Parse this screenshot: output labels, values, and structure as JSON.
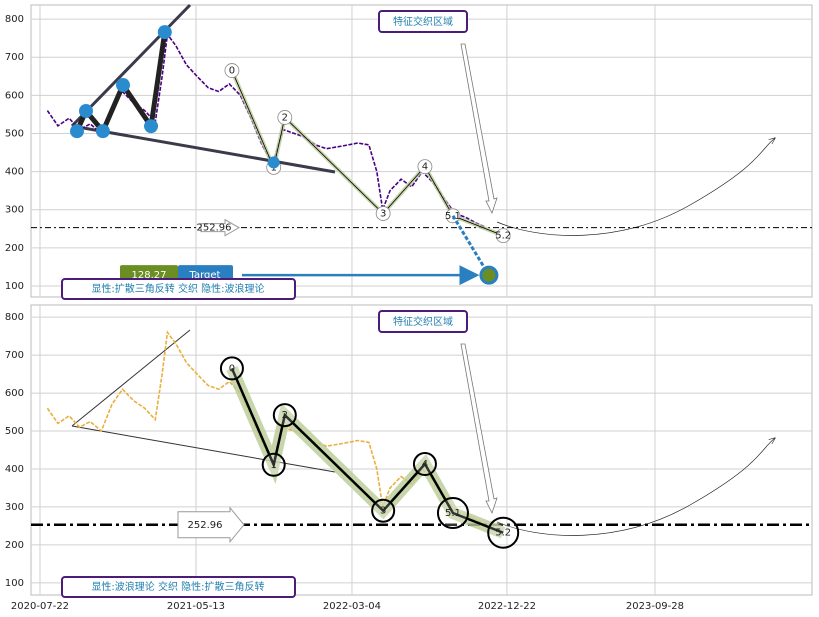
{
  "chart_data": [
    {
      "type": "line",
      "xlim": [
        "2020-07-05",
        "2024-07-21"
      ],
      "xticks": [
        "2020-07-22",
        "2021-05-13",
        "2022-03-04",
        "2022-12-22",
        "2023-09-28"
      ],
      "ylim": [
        71,
        837
      ],
      "yticks": [
        100,
        200,
        300,
        400,
        500,
        600,
        700,
        800
      ],
      "grid": true,
      "x": [
        "2020-08-05",
        "2020-08-25",
        "2020-09-15",
        "2020-10-05",
        "2020-10-25",
        "2020-11-15",
        "2020-12-05",
        "2020-12-25",
        "2021-01-15",
        "2021-02-05",
        "2021-02-25",
        "2021-03-10",
        "2021-03-20",
        "2021-04-05",
        "2021-04-25",
        "2021-05-15",
        "2021-06-05",
        "2021-06-25",
        "2021-07-15",
        "2021-08-05",
        "2021-08-25",
        "2021-09-15",
        "2021-10-05",
        "2021-10-25",
        "2021-11-15",
        "2021-12-05",
        "2021-12-25",
        "2022-01-15",
        "2022-02-05",
        "2022-02-25",
        "2022-03-15",
        "2022-04-05",
        "2022-04-20",
        "2022-05-01",
        "2022-05-15",
        "2022-06-05",
        "2022-06-25",
        "2022-07-15",
        "2022-08-05",
        "2022-08-25",
        "2022-09-15",
        "2022-10-05",
        "2022-10-25",
        "2022-11-10"
      ],
      "series": [
        {
          "color": "#4b0082",
          "values": [
            560,
            520,
            540,
            510,
            525,
            500,
            570,
            610,
            580,
            560,
            530,
            650,
            760,
            730,
            680,
            650,
            620,
            610,
            630,
            600,
            540,
            470,
            420,
            510,
            500,
            490,
            470,
            460,
            465,
            470,
            475,
            470,
            400,
            300,
            350,
            380,
            360,
            400,
            370,
            330,
            290,
            280,
            265,
            255
          ]
        }
      ],
      "triangle": {
        "x": [
          "2020-09-30",
          "2020-10-17",
          "2020-11-18",
          "2020-12-26",
          "2021-02-17",
          "2021-03-15"
        ],
        "values": [
          506,
          559,
          506,
          627,
          519,
          766
        ],
        "color": "#2a8ccf"
      },
      "waves": {
        "labels": [
          "0",
          "1",
          "2",
          "3",
          "4",
          "5.1",
          "5.2"
        ],
        "x": [
          "2021-07-20",
          "2021-10-07",
          "2021-10-28",
          "2022-05-02",
          "2022-07-20",
          "2022-09-11",
          "2022-12-15"
        ],
        "values": [
          665,
          411,
          542,
          290,
          413,
          284,
          232
        ]
      },
      "level": 252.96,
      "target": {
        "value": 128.27,
        "label": "Target",
        "x": "2022-11-18"
      },
      "zone_label": "特征交织区域",
      "caption": "显性:扩散三角反转 交织 隐性:波浪理论"
    },
    {
      "type": "line",
      "xlim": [
        "2020-07-05",
        "2024-07-21"
      ],
      "xticks": [
        "2020-07-22",
        "2021-05-13",
        "2022-03-04",
        "2022-12-22",
        "2023-09-28"
      ],
      "ylim": [
        68,
        832
      ],
      "yticks": [
        100,
        200,
        300,
        400,
        500,
        600,
        700,
        800
      ],
      "grid": true,
      "x": [
        "2020-08-05",
        "2020-08-25",
        "2020-09-15",
        "2020-10-05",
        "2020-10-25",
        "2020-11-15",
        "2020-12-05",
        "2020-12-25",
        "2021-01-15",
        "2021-02-05",
        "2021-02-25",
        "2021-03-10",
        "2021-03-20",
        "2021-04-05",
        "2021-04-25",
        "2021-05-15",
        "2021-06-05",
        "2021-06-25",
        "2021-07-15",
        "2021-08-05",
        "2021-08-25",
        "2021-09-15",
        "2021-10-05",
        "2021-10-25",
        "2021-11-15",
        "2021-12-05",
        "2021-12-25",
        "2022-01-15",
        "2022-02-05",
        "2022-02-25",
        "2022-03-15",
        "2022-04-05",
        "2022-04-20",
        "2022-05-01",
        "2022-05-15",
        "2022-06-05",
        "2022-06-25",
        "2022-07-15",
        "2022-08-05",
        "2022-08-25",
        "2022-09-15",
        "2022-10-05",
        "2022-10-25",
        "2022-11-10"
      ],
      "series": [
        {
          "color": "#e8b040",
          "values": [
            560,
            520,
            540,
            510,
            525,
            500,
            570,
            610,
            580,
            560,
            530,
            650,
            760,
            730,
            680,
            650,
            620,
            610,
            630,
            600,
            540,
            470,
            420,
            510,
            500,
            490,
            470,
            460,
            465,
            470,
            475,
            470,
            400,
            300,
            350,
            380,
            360,
            400,
            370,
            330,
            290,
            280,
            265,
            255
          ]
        }
      ],
      "waves": {
        "labels": [
          "0",
          "1",
          "2",
          "3",
          "4",
          "5.1",
          "5.2"
        ],
        "x": [
          "2021-07-20",
          "2021-10-07",
          "2021-10-28",
          "2022-05-02",
          "2022-07-20",
          "2022-09-11",
          "2022-12-15"
        ],
        "values": [
          665,
          411,
          542,
          290,
          413,
          284,
          232
        ]
      },
      "level": 252.96,
      "zone_label": "特征交织区域",
      "caption": "显性:波浪理论 交织 隐性:扩散三角反转"
    }
  ]
}
